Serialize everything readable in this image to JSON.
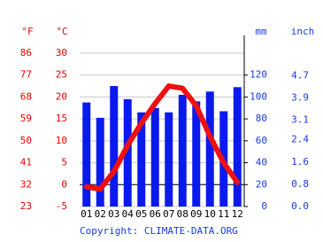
{
  "chart_data": {
    "type": "climate",
    "categories": [
      "01",
      "02",
      "03",
      "04",
      "05",
      "06",
      "07",
      "08",
      "09",
      "10",
      "11",
      "12"
    ],
    "ylabel": "°C",
    "ylim": [
      -5,
      30
    ],
    "yticks": [
      -5,
      0,
      5,
      10,
      15,
      20,
      25,
      30
    ],
    "yflabel": "°F",
    "yflim": [
      23,
      86
    ],
    "yfticks": [
      23,
      32,
      41,
      50,
      59,
      68,
      77,
      86
    ],
    "y2label": "mm",
    "y2lim": [
      0,
      140
    ],
    "y2ticks": [
      0,
      20,
      40,
      60,
      80,
      100,
      120
    ],
    "y2inlabel": "inch",
    "y2inlim": [
      0,
      5.51
    ],
    "y2inticks": [
      {
        "value": 0,
        "label": "0.0"
      },
      0.8,
      1.6,
      2.4,
      3.1,
      3.9,
      4.7
    ],
    "series": [
      {
        "kind": "bar",
        "axis": "y2",
        "color": "#0a1aee",
        "values": [
          95,
          81,
          110,
          98,
          86,
          90,
          86,
          102,
          96,
          105,
          87,
          109
        ]
      },
      {
        "kind": "line",
        "color": "#ee1111",
        "values": [
          -0.5,
          -1,
          3,
          9,
          14,
          18.5,
          22.5,
          22,
          18,
          11,
          5,
          0.5
        ]
      }
    ],
    "grid": true,
    "source": "Copyright: CLIMATE-DATA.ORG"
  }
}
